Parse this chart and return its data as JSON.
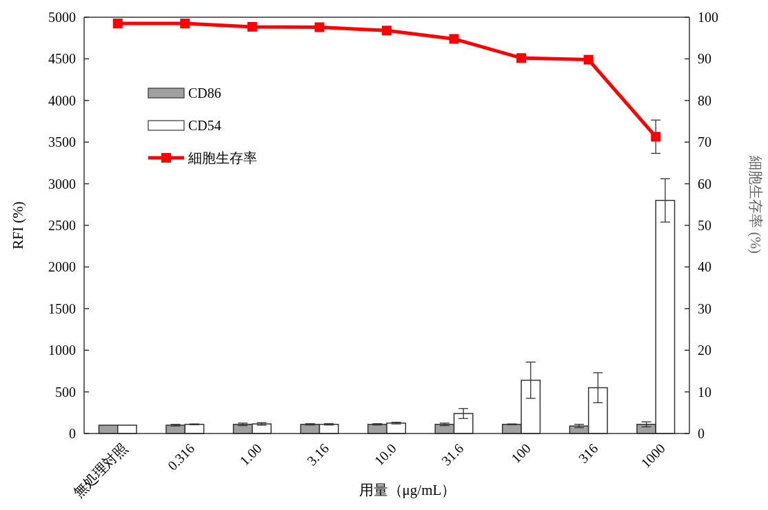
{
  "chart_data": {
    "type": "bar",
    "xlabel": "用量（μg/mL）",
    "ylabel": "RFI (%)",
    "y2label": "細胞生存率 (%)",
    "categories": [
      "無処理対照",
      "0.316",
      "1.00",
      "3.16",
      "10.0",
      "31.6",
      "100",
      "316",
      "1000"
    ],
    "series": [
      {
        "name": "CD86",
        "color": "#a0a0a0",
        "values": [
          100,
          100,
          110,
          110,
          110,
          110,
          110,
          90,
          110
        ],
        "errors": [
          null,
          10,
          15,
          8,
          8,
          15,
          5,
          20,
          30
        ]
      },
      {
        "name": "CD54",
        "color": "#ffffff",
        "values": [
          100,
          110,
          115,
          110,
          125,
          240,
          640,
          550,
          2800
        ],
        "errors": [
          null,
          5,
          15,
          8,
          10,
          60,
          218,
          180,
          260
        ]
      },
      {
        "name": "細胞生存率",
        "type": "line",
        "axis": "y2",
        "color": "#ff0000",
        "values": [
          98.5,
          98.5,
          97.7,
          97.6,
          96.8,
          94.8,
          90.2,
          89.8,
          71.3
        ],
        "errors": [
          null,
          null,
          null,
          null,
          null,
          null,
          null,
          null,
          4
        ]
      }
    ],
    "ylim": [
      0,
      5000
    ],
    "yticks": [
      0,
      500,
      1000,
      1500,
      2000,
      2500,
      3000,
      3500,
      4000,
      4500,
      5000
    ],
    "y2lim": [
      0,
      100
    ],
    "y2ticks": [
      0,
      10,
      20,
      30,
      40,
      50,
      60,
      70,
      80,
      90,
      100
    ],
    "legend": "top left",
    "marker": "square",
    "grid": false
  }
}
